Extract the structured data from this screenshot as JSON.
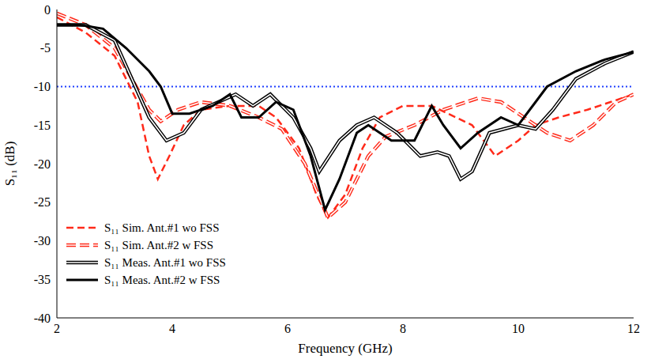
{
  "chart_data": {
    "type": "line",
    "x_label": "Frequency (GHz)",
    "y_label": "S₁₁ (dB)",
    "xlim": [
      2,
      12
    ],
    "xticks": [
      2,
      4,
      6,
      8,
      10,
      12
    ],
    "ylim": [
      -40,
      0
    ],
    "yticks": [
      0,
      -5,
      -10,
      -15,
      -20,
      -25,
      -30,
      -35,
      -40
    ],
    "grid": false,
    "legend": "lower left",
    "threshold": {
      "y": -10,
      "color": "#1f3fff",
      "line_style": "dotted"
    },
    "series": [
      {
        "name": "S₁₁ Sim. Ant.#1 wo FSS",
        "color": "#ff2a1a",
        "line_style": "dashed",
        "x": [
          2,
          2.5,
          3,
          3.4,
          3.6,
          3.75,
          3.95,
          4.2,
          4.5,
          5,
          5.5,
          5.8,
          6.2,
          6.5,
          6.7,
          7,
          7.3,
          7.6,
          8,
          8.5,
          9.2,
          9.6,
          10,
          10.3,
          10.7,
          11.2,
          11.6,
          12
        ],
        "values": [
          -1,
          -3,
          -6,
          -12,
          -19,
          -22,
          -19,
          -15,
          -13,
          -12.5,
          -12.5,
          -14,
          -18,
          -24,
          -27,
          -24,
          -18,
          -14,
          -12.5,
          -12.5,
          -15,
          -19,
          -17,
          -15,
          -14,
          -13,
          -12,
          -11
        ]
      },
      {
        "name": "S₁₁ Sim. Ant.#2 w FSS",
        "color": "#ff2a1a",
        "line_style": "double_dashed",
        "x": [
          2,
          2.5,
          3,
          3.3,
          3.6,
          3.8,
          4.1,
          4.5,
          5,
          5.5,
          5.9,
          6.3,
          6.7,
          7,
          7.4,
          7.7,
          8.2,
          8.7,
          9.3,
          9.7,
          10.1,
          10.5,
          10.9,
          11.3,
          11.7,
          12
        ],
        "values": [
          -0.5,
          -2,
          -5,
          -9,
          -13,
          -14.5,
          -13,
          -12,
          -12.5,
          -14,
          -15.5,
          -20,
          -27,
          -25,
          -19,
          -16.5,
          -15,
          -13,
          -11.5,
          -12,
          -14,
          -16,
          -17,
          -15,
          -12,
          -11
        ]
      },
      {
        "name": "S₁₁ Meas. Ant.#1 wo FSS",
        "color": "#000000",
        "line_style": "double",
        "x": [
          2,
          2.5,
          3,
          3.3,
          3.6,
          3.9,
          4.2,
          4.5,
          4.8,
          5.1,
          5.4,
          5.7,
          6.1,
          6.4,
          6.55,
          6.9,
          7.2,
          7.5,
          7.9,
          8.3,
          8.6,
          8.8,
          9,
          9.2,
          9.5,
          10,
          10.3,
          10.6,
          11,
          11.5,
          12
        ],
        "values": [
          -2,
          -2,
          -4,
          -9,
          -14,
          -17,
          -16,
          -13,
          -12,
          -11,
          -12.5,
          -11,
          -14,
          -18,
          -21,
          -17,
          -15,
          -14,
          -16,
          -19,
          -18.5,
          -19,
          -22,
          -21,
          -16,
          -15,
          -15.5,
          -13,
          -9,
          -7,
          -5.5
        ]
      },
      {
        "name": "S₁₁ Meas. Ant.#2 w FSS",
        "color": "#000000",
        "line_style": "solid",
        "x": [
          2,
          2.4,
          2.8,
          3.2,
          3.6,
          3.8,
          4,
          4.3,
          4.7,
          5,
          5.2,
          5.5,
          5.8,
          6.1,
          6.4,
          6.65,
          6.9,
          7.2,
          7.4,
          7.8,
          8.2,
          8.5,
          8.7,
          9,
          9.3,
          9.7,
          10,
          10.3,
          10.5,
          11,
          11.5,
          12
        ],
        "values": [
          -2,
          -2,
          -2.5,
          -5,
          -8,
          -10,
          -13.5,
          -13.5,
          -12.5,
          -11,
          -14,
          -14,
          -12,
          -13,
          -19,
          -26,
          -22,
          -16,
          -15,
          -17,
          -17,
          -12.5,
          -15,
          -18,
          -16,
          -14,
          -15,
          -12,
          -10,
          -8,
          -6.5,
          -5.5
        ]
      }
    ]
  }
}
